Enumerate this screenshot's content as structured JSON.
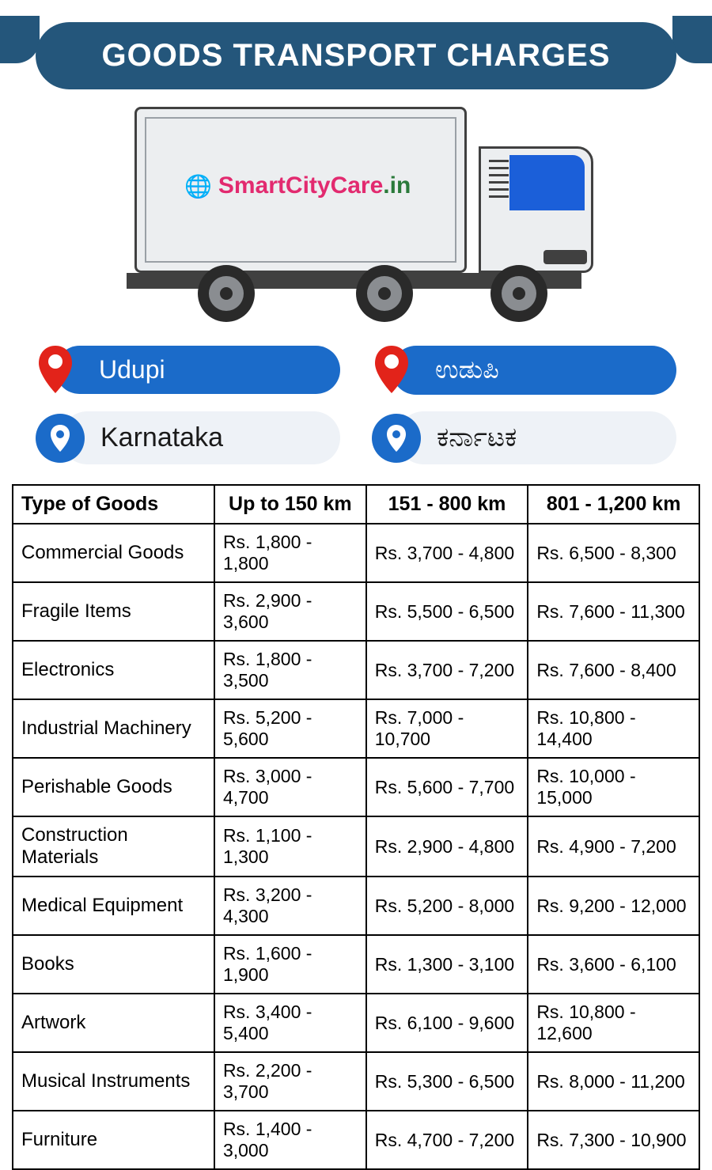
{
  "header": {
    "title": "GOODS TRANSPORT CHARGES"
  },
  "brand": {
    "part1": "SmartCityCare",
    "part2": ".in"
  },
  "colors": {
    "header_bg": "#24567b",
    "pill_blue": "#1b6bc9",
    "pin_red": "#e2231a",
    "brand_pink": "#e22a6f",
    "brand_green": "#2a7a3a",
    "truck_body": "#eceef0",
    "state_pill_bg": "#eef2f7"
  },
  "locations": {
    "city_en": "Udupi",
    "city_local": "ಉಡುಪಿ",
    "state_en": "Karnataka",
    "state_local": "ಕರ್ನಾಟಕ"
  },
  "table": {
    "columns": [
      "Type of Goods",
      "Up to 150 km",
      "151 - 800 km",
      "801 - 1,200 km"
    ],
    "rows": [
      [
        "Commercial Goods",
        "Rs. 1,800 - 1,800",
        "Rs. 3,700 - 4,800",
        "Rs. 6,500 - 8,300"
      ],
      [
        "Fragile Items",
        "Rs. 2,900 - 3,600",
        "Rs. 5,500 - 6,500",
        "Rs. 7,600 - 11,300"
      ],
      [
        "Electronics",
        "Rs. 1,800 - 3,500",
        "Rs. 3,700 - 7,200",
        "Rs. 7,600 - 8,400"
      ],
      [
        "Industrial Machinery",
        "Rs. 5,200 - 5,600",
        "Rs. 7,000 - 10,700",
        "Rs. 10,800 - 14,400"
      ],
      [
        "Perishable Goods",
        "Rs. 3,000 - 4,700",
        "Rs. 5,600 - 7,700",
        "Rs. 10,000 - 15,000"
      ],
      [
        "Construction Materials",
        "Rs. 1,100 - 1,300",
        "Rs. 2,900 - 4,800",
        "Rs. 4,900 - 7,200"
      ],
      [
        "Medical Equipment",
        "Rs. 3,200 - 4,300",
        "Rs. 5,200 - 8,000",
        "Rs. 9,200 - 12,000"
      ],
      [
        "Books",
        "Rs. 1,600 - 1,900",
        "Rs. 1,300 - 3,100",
        "Rs. 3,600 - 6,100"
      ],
      [
        "Artwork",
        "Rs. 3,400 - 5,400",
        "Rs. 6,100 - 9,600",
        "Rs. 10,800 - 12,600"
      ],
      [
        "Musical Instruments",
        "Rs. 2,200 - 3,700",
        "Rs. 5,300 - 6,500",
        "Rs. 8,000 - 11,200"
      ],
      [
        "Furniture",
        "Rs. 1,400 - 3,000",
        "Rs. 4,700 - 7,200",
        "Rs. 7,300 - 10,900"
      ]
    ]
  }
}
